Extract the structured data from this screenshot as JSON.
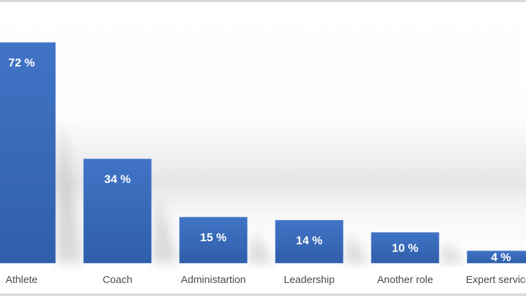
{
  "chart_data": {
    "type": "bar",
    "title": "",
    "xlabel": "",
    "ylabel": "",
    "categories": [
      "Athlete",
      "Coach",
      "Administartion",
      "Leadership",
      "Another role",
      "Expert services"
    ],
    "values": [
      72,
      34,
      15,
      14,
      10,
      4
    ],
    "data_labels": [
      "72 %",
      "34 %",
      "15 %",
      "14 %",
      "10 %",
      "4 %"
    ],
    "unit": "%",
    "ylim": [
      0,
      80
    ],
    "grid": false,
    "legend": "none",
    "bar_color": "#3b6cc0"
  }
}
